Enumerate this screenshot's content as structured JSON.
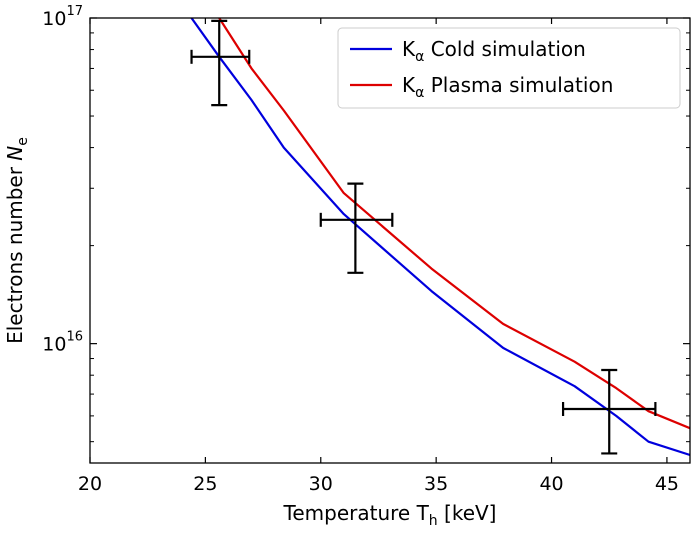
{
  "chart_data": {
    "type": "line",
    "title": "",
    "xlabel": "Temperature T",
    "xlabel_sub": "h",
    "xlabel_unit": "[keV]",
    "ylabel": "Electrons number",
    "ylabel_var": "N",
    "ylabel_sub": "e",
    "xlim": [
      20,
      46
    ],
    "ylim": [
      4300000000000000.0,
      1e+17
    ],
    "yscale": "log",
    "xticks": [
      20,
      25,
      30,
      35,
      40,
      45
    ],
    "xtick_labels": [
      "20",
      "25",
      "30",
      "35",
      "40",
      "45"
    ],
    "ytick_labels": [
      {
        "value": 1e+16,
        "base": "10",
        "exp": "16"
      },
      {
        "value": 1e+17,
        "base": "10",
        "exp": "17"
      }
    ],
    "grid": false,
    "legend": {
      "placement": "top-right",
      "entries": [
        {
          "prefix": "K",
          "sub": "α",
          "text": " Cold simulation",
          "color": "#0000dd"
        },
        {
          "prefix": "K",
          "sub": "α",
          "text": " Plasma simulation",
          "color": "#dd0000"
        }
      ]
    },
    "series": [
      {
        "color": "#0000dd",
        "x": [
          24.4,
          25.6,
          27.0,
          28.4,
          31.0,
          34.8,
          37.9,
          41.0,
          42.8,
          44.2,
          46.0
        ],
        "y": [
          1e+17,
          7.6e+16,
          5.6e+16,
          4e+16,
          2.5e+16,
          1.45e+16,
          9700000000000000.0,
          7400000000000000.0,
          6000000000000000.0,
          5000000000000000.0,
          4550000000000000.0
        ]
      },
      {
        "color": "#dd0000",
        "x": [
          25.6,
          27.0,
          28.4,
          31.0,
          34.8,
          37.9,
          41.0,
          42.8,
          44.2,
          46.0
        ],
        "y": [
          1e+17,
          7e+16,
          5.2e+16,
          2.9e+16,
          1.7e+16,
          1.15e+16,
          8800000000000000.0,
          7300000000000000.0,
          6200000000000000.0,
          5500000000000000.0
        ]
      }
    ],
    "errorbars": {
      "color": "#000000",
      "points": [
        {
          "x": 25.6,
          "y": 7.6e+16,
          "xerr": [
            24.4,
            26.9
          ],
          "yerr": [
            5.4e+16,
            9.8e+16
          ]
        },
        {
          "x": 31.5,
          "y": 2.4e+16,
          "xerr": [
            30.0,
            33.1
          ],
          "yerr": [
            1.65e+16,
            3.1e+16
          ]
        },
        {
          "x": 42.5,
          "y": 6300000000000000.0,
          "xerr": [
            40.5,
            44.5
          ],
          "yerr": [
            4600000000000000.0,
            8300000000000000.0
          ]
        }
      ]
    }
  }
}
